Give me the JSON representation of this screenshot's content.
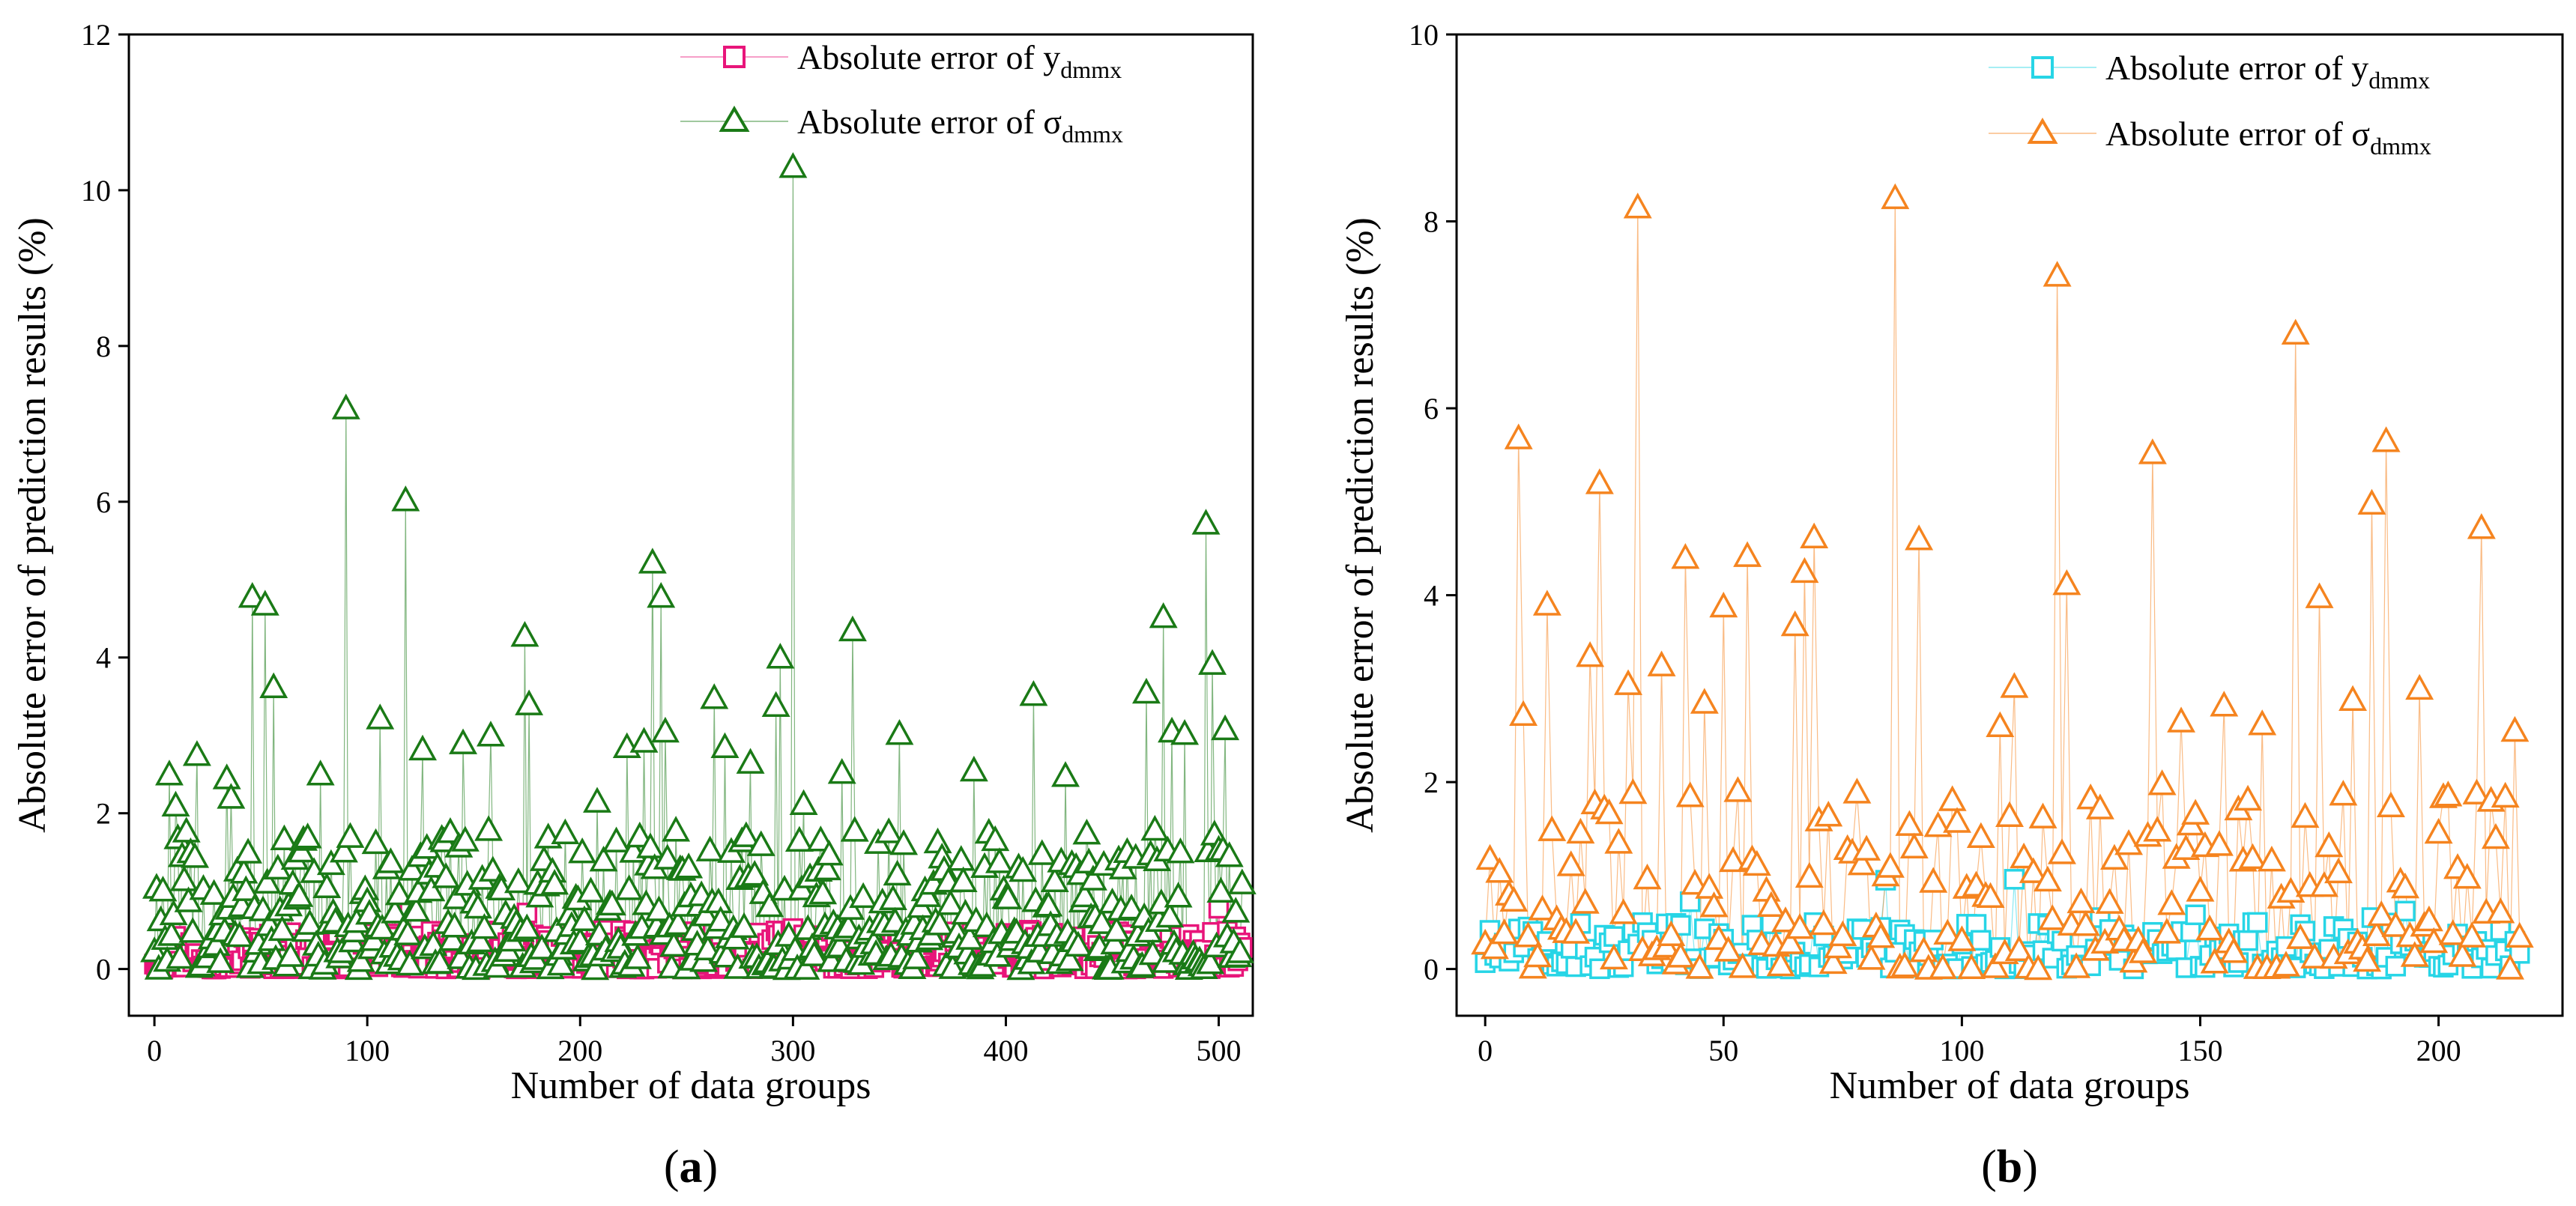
{
  "colors": {
    "a_y": "#e8157a",
    "a_sigma": "#1a7a16",
    "b_y": "#27d5e6",
    "b_sigma": "#f5841f"
  },
  "panels": [
    {
      "label_open": "(",
      "label_letter": "a",
      "label_close": ")"
    },
    {
      "label_open": "(",
      "label_letter": "b",
      "label_close": ")"
    }
  ],
  "chart_data": [
    {
      "type": "scatter",
      "panel": "a",
      "xlabel": "Number of data groups",
      "ylabel": "Absolute error of prediction results (%)",
      "xlim": [
        -12,
        516
      ],
      "ylim": [
        -0.6,
        12
      ],
      "xticks": [
        0,
        100,
        200,
        300,
        400,
        500
      ],
      "yticks": [
        0,
        2,
        4,
        6,
        8,
        10,
        12
      ],
      "legend_position": "top-right",
      "series": [
        {
          "name": "Absolute error of y_dmmx",
          "legend_main": "Absolute error of y",
          "legend_sub": "dmmx",
          "marker": "square",
          "color": "#e8157a",
          "n_points": 512,
          "typical_range": [
            0.0,
            0.5
          ],
          "peaks": [
            {
              "x": 10,
              "y": 0.42
            },
            {
              "x": 60,
              "y": 0.38
            },
            {
              "x": 120,
              "y": 0.78
            },
            {
              "x": 175,
              "y": 0.72
            },
            {
              "x": 212,
              "y": 0.42
            },
            {
              "x": 300,
              "y": 0.52
            },
            {
              "x": 372,
              "y": 0.45
            },
            {
              "x": 412,
              "y": 0.48
            },
            {
              "x": 468,
              "y": 0.4
            },
            {
              "x": 500,
              "y": 0.78
            }
          ]
        },
        {
          "name": "Absolute error of σ_dmmx",
          "legend_main": "Absolute error of σ",
          "legend_sub": "dmmx",
          "marker": "triangle",
          "color": "#1a7a16",
          "n_points": 512,
          "typical_range": [
            0.0,
            1.8
          ],
          "peaks": [
            {
              "x": 7,
              "y": 2.5
            },
            {
              "x": 10,
              "y": 2.1
            },
            {
              "x": 20,
              "y": 2.75
            },
            {
              "x": 34,
              "y": 2.45
            },
            {
              "x": 36,
              "y": 2.2
            },
            {
              "x": 46,
              "y": 4.78
            },
            {
              "x": 52,
              "y": 4.68
            },
            {
              "x": 56,
              "y": 3.62
            },
            {
              "x": 78,
              "y": 2.5
            },
            {
              "x": 90,
              "y": 7.2
            },
            {
              "x": 106,
              "y": 3.22
            },
            {
              "x": 118,
              "y": 6.02
            },
            {
              "x": 126,
              "y": 2.82
            },
            {
              "x": 145,
              "y": 2.9
            },
            {
              "x": 158,
              "y": 3.0
            },
            {
              "x": 174,
              "y": 4.28
            },
            {
              "x": 176,
              "y": 3.4
            },
            {
              "x": 208,
              "y": 2.15
            },
            {
              "x": 222,
              "y": 2.85
            },
            {
              "x": 230,
              "y": 2.92
            },
            {
              "x": 234,
              "y": 5.22
            },
            {
              "x": 238,
              "y": 4.78
            },
            {
              "x": 240,
              "y": 3.05
            },
            {
              "x": 263,
              "y": 3.48
            },
            {
              "x": 268,
              "y": 2.85
            },
            {
              "x": 280,
              "y": 2.65
            },
            {
              "x": 292,
              "y": 3.38
            },
            {
              "x": 294,
              "y": 4.0
            },
            {
              "x": 300,
              "y": 10.3
            },
            {
              "x": 305,
              "y": 2.12
            },
            {
              "x": 323,
              "y": 2.52
            },
            {
              "x": 328,
              "y": 4.35
            },
            {
              "x": 350,
              "y": 3.02
            },
            {
              "x": 385,
              "y": 2.55
            },
            {
              "x": 413,
              "y": 3.52
            },
            {
              "x": 428,
              "y": 2.48
            },
            {
              "x": 466,
              "y": 3.55
            },
            {
              "x": 474,
              "y": 4.52
            },
            {
              "x": 478,
              "y": 3.05
            },
            {
              "x": 484,
              "y": 3.02
            },
            {
              "x": 494,
              "y": 5.72
            },
            {
              "x": 497,
              "y": 3.92
            },
            {
              "x": 503,
              "y": 3.08
            }
          ]
        }
      ]
    },
    {
      "type": "scatter",
      "panel": "b",
      "xlabel": "Number of data groups",
      "ylabel": "Absolute error of prediction results (%)",
      "xlim": [
        -6,
        226
      ],
      "ylim": [
        -0.5,
        10
      ],
      "xticks": [
        0,
        50,
        100,
        150,
        200
      ],
      "yticks": [
        0,
        2,
        4,
        6,
        8,
        10
      ],
      "legend_position": "top-right",
      "series": [
        {
          "name": "Absolute error of y_dmmx",
          "legend_main": "Absolute error of y",
          "legend_sub": "dmmx",
          "marker": "square",
          "color": "#27d5e6",
          "n_points": 218,
          "typical_range": [
            0.0,
            0.5
          ],
          "peaks": [
            {
              "x": 43,
              "y": 0.72
            },
            {
              "x": 84,
              "y": 0.95
            },
            {
              "x": 111,
              "y": 0.96
            },
            {
              "x": 129,
              "y": 0.55
            },
            {
              "x": 149,
              "y": 0.58
            },
            {
              "x": 186,
              "y": 0.55
            },
            {
              "x": 193,
              "y": 0.62
            }
          ]
        },
        {
          "name": "Absolute error of σ_dmmx",
          "legend_main": "Absolute error of σ",
          "legend_sub": "dmmx",
          "marker": "triangle",
          "color": "#f5841f",
          "n_points": 218,
          "typical_range": [
            0.0,
            2.0
          ],
          "peaks": [
            {
              "x": 1,
              "y": 1.18
            },
            {
              "x": 7,
              "y": 5.68
            },
            {
              "x": 8,
              "y": 2.72
            },
            {
              "x": 13,
              "y": 3.9
            },
            {
              "x": 24,
              "y": 5.2
            },
            {
              "x": 22,
              "y": 3.35
            },
            {
              "x": 30,
              "y": 3.05
            },
            {
              "x": 32,
              "y": 8.15
            },
            {
              "x": 37,
              "y": 3.25
            },
            {
              "x": 42,
              "y": 4.4
            },
            {
              "x": 46,
              "y": 2.85
            },
            {
              "x": 50,
              "y": 3.88
            },
            {
              "x": 55,
              "y": 4.42
            },
            {
              "x": 65,
              "y": 3.68
            },
            {
              "x": 67,
              "y": 4.25
            },
            {
              "x": 69,
              "y": 4.62
            },
            {
              "x": 86,
              "y": 8.25
            },
            {
              "x": 91,
              "y": 4.6
            },
            {
              "x": 108,
              "y": 2.6
            },
            {
              "x": 111,
              "y": 3.02
            },
            {
              "x": 120,
              "y": 7.42
            },
            {
              "x": 122,
              "y": 4.12
            },
            {
              "x": 140,
              "y": 5.52
            },
            {
              "x": 146,
              "y": 2.65
            },
            {
              "x": 155,
              "y": 2.82
            },
            {
              "x": 163,
              "y": 2.62
            },
            {
              "x": 170,
              "y": 6.8
            },
            {
              "x": 175,
              "y": 3.98
            },
            {
              "x": 182,
              "y": 2.88
            },
            {
              "x": 186,
              "y": 4.98
            },
            {
              "x": 189,
              "y": 5.65
            },
            {
              "x": 196,
              "y": 3.0
            },
            {
              "x": 209,
              "y": 4.72
            },
            {
              "x": 216,
              "y": 2.55
            }
          ]
        }
      ]
    }
  ]
}
